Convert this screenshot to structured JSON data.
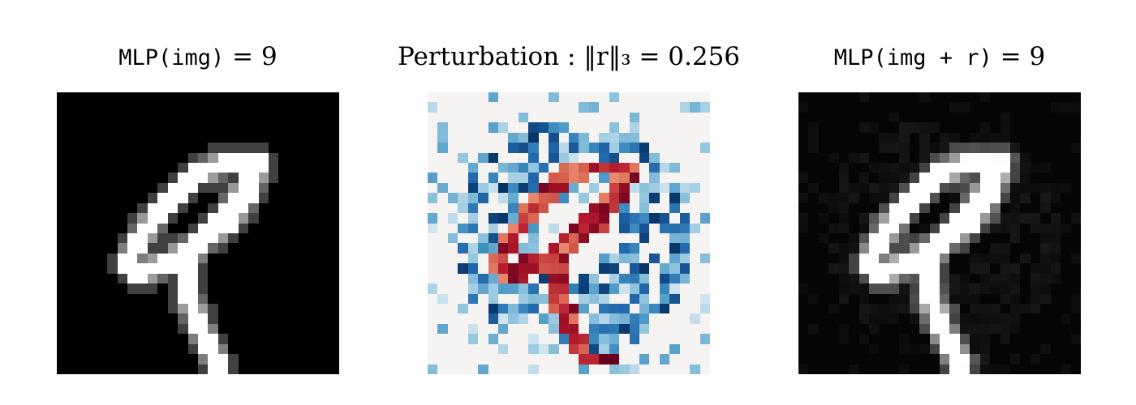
{
  "chart_data": [
    {
      "type": "heatmap",
      "title_code": "MLP(img)",
      "title_rest": " = 9",
      "colormap": "gray",
      "vmin": 0,
      "vmax": 1,
      "strokes": [
        [
          [
            20,
            7
          ],
          [
            17,
            7
          ],
          [
            14,
            8
          ],
          [
            12,
            10
          ],
          [
            10,
            12
          ],
          [
            8,
            15
          ],
          [
            7,
            17
          ],
          [
            8,
            18
          ],
          [
            11,
            17
          ],
          [
            14,
            15
          ],
          [
            17,
            12
          ],
          [
            19,
            9
          ],
          [
            20,
            7
          ]
        ],
        [
          [
            20,
            7
          ],
          [
            19,
            10
          ],
          [
            17,
            13
          ],
          [
            14,
            15
          ],
          [
            13,
            17
          ],
          [
            13,
            20
          ],
          [
            14,
            23
          ],
          [
            15,
            25
          ],
          [
            16,
            27
          ]
        ]
      ]
    },
    {
      "type": "heatmap",
      "title_code": "",
      "title_rest": "Perturbation : ‖r‖₃ = 0.256",
      "colormap": "RdBu_r",
      "vmin": -1,
      "vmax": 1
    },
    {
      "type": "heatmap",
      "title_code": "MLP(img + r)",
      "title_rest": " = 9",
      "colormap": "gray",
      "vmin": 0,
      "vmax": 1
    }
  ]
}
